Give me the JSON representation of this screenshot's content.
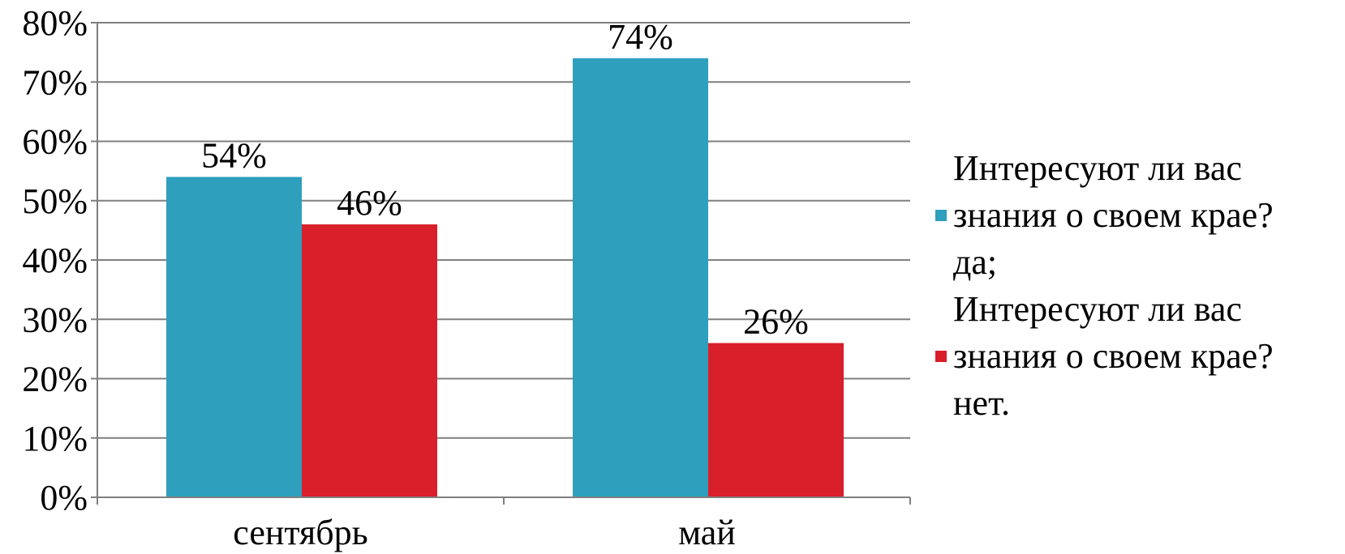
{
  "chart_data": {
    "type": "bar",
    "title": "",
    "xlabel": "",
    "ylabel": "",
    "categories": [
      "сентябрь",
      "май"
    ],
    "ylim": [
      0,
      80
    ],
    "yticks": [
      0,
      10,
      20,
      30,
      40,
      50,
      60,
      70,
      80
    ],
    "ytick_labels": [
      "0%",
      "10%",
      "20%",
      "30%",
      "40%",
      "50%",
      "60%",
      "70%",
      "80%"
    ],
    "grid": true,
    "legend_position": "right",
    "series": [
      {
        "name": "Интересуют ли вас знания о своем крае? да;",
        "legend_lines": [
          "Интересуют ли вас",
          "знания о своем крае?",
          "да;"
        ],
        "color": "#2e9fbd",
        "values": [
          54,
          74
        ],
        "labels": [
          "54%",
          "74%"
        ]
      },
      {
        "name": "Интересуют ли вас знания о своем крае? нет.",
        "legend_lines": [
          "Интересуют ли вас",
          "знания о своем крае?",
          "нет."
        ],
        "color": "#d91f2a",
        "values": [
          46,
          26
        ],
        "labels": [
          "46%",
          "26%"
        ]
      }
    ]
  }
}
